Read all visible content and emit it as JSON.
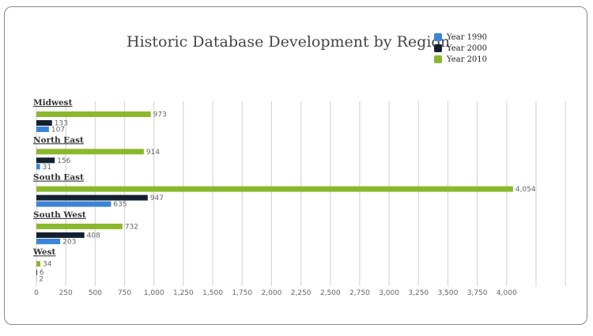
{
  "chart_data": {
    "type": "bar",
    "orientation": "horizontal",
    "title": "Historic Database Development by Region",
    "categories": [
      "Midwest",
      "North East",
      "South East",
      "South West",
      "West"
    ],
    "series": [
      {
        "name": "Year 2010",
        "color": "#8ab82d",
        "values": [
          973,
          914,
          4054,
          732,
          34
        ]
      },
      {
        "name": "Year 2000",
        "color": "#14202f",
        "values": [
          133,
          156,
          947,
          408,
          6
        ]
      },
      {
        "name": "Year 1990",
        "color": "#3c85d6",
        "values": [
          107,
          31,
          635,
          203,
          2
        ]
      }
    ],
    "legend_order": [
      "Year 1990",
      "Year 2000",
      "Year 2010"
    ],
    "xlim": [
      0,
      4500
    ],
    "x_ticks": [
      "0",
      "250",
      "500",
      "750",
      "1,000",
      "1,250",
      "1,500",
      "1,750",
      "2,000",
      "2,250",
      "2,500",
      "2,750",
      "3,000",
      "3,250",
      "3,500",
      "3,750",
      "4,000"
    ],
    "tick_step": 250,
    "grid": true,
    "legend_position": "top-right"
  }
}
